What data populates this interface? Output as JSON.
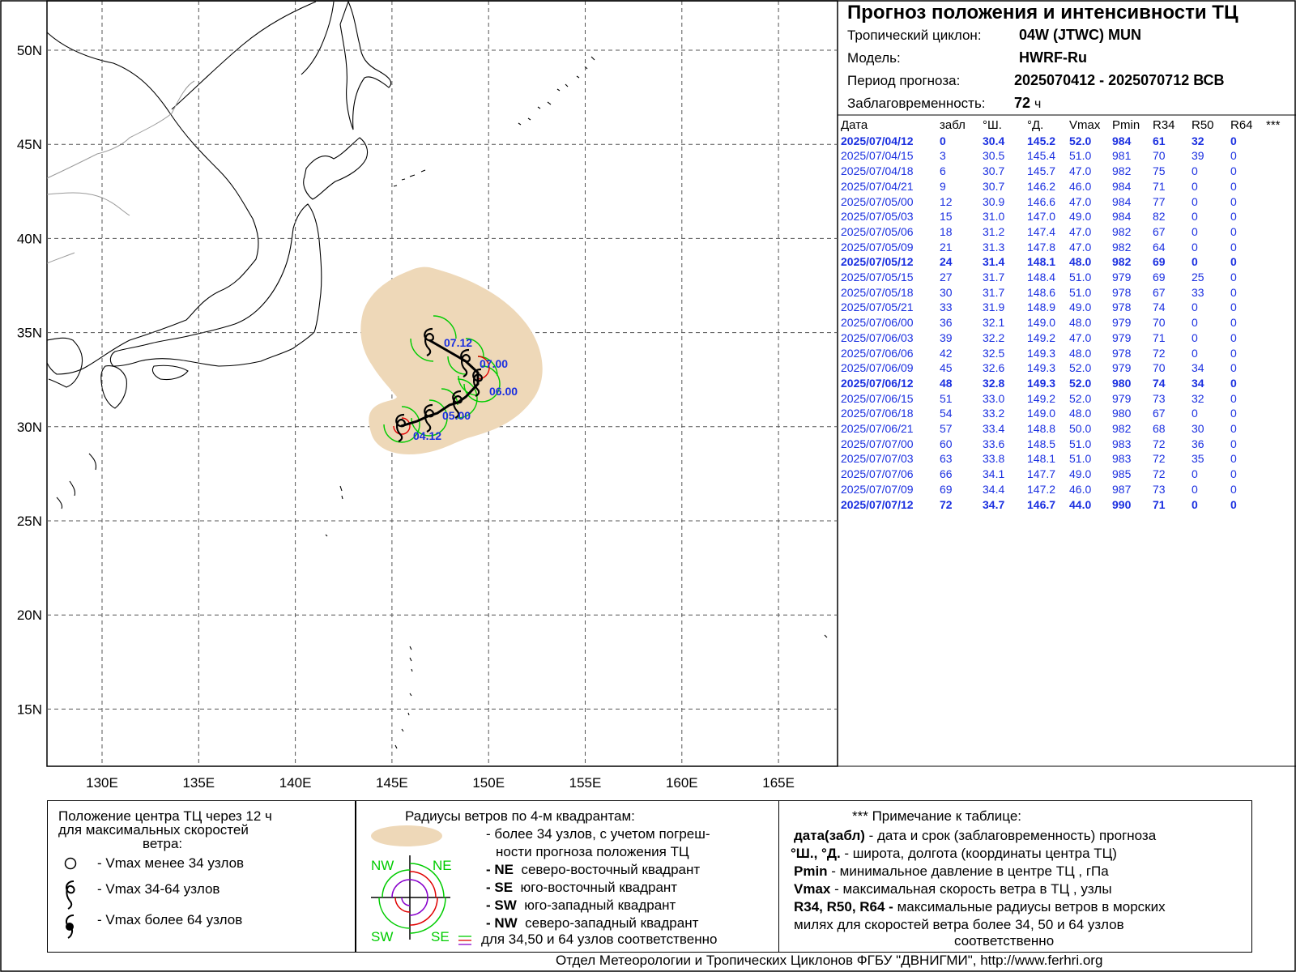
{
  "header": {
    "title": "Прогноз положения и интенсивности ТЦ",
    "cyclone_label": "Тропический циклон:",
    "cyclone_value": "04W (JTWC)  MUN",
    "model_label": "Модель:",
    "model_value": "HWRF-Ru",
    "period_label": "Период прогноза:",
    "period_value": "2025070412 - 2025070712 ВСВ",
    "lead_label": "Заблаговременность:",
    "lead_value": "72",
    "lead_unit": "ч"
  },
  "table": {
    "columns": [
      "Дата",
      "забл",
      "°Ш.",
      "°Д.",
      "Vmax",
      "Pmin",
      "R34",
      "R50",
      "R64",
      "***"
    ],
    "rows": [
      {
        "date": "2025/07/04/12",
        "lead": "0",
        "lat": "30.4",
        "lon": "145.2",
        "vmax": "52.0",
        "pmin": "984",
        "r34": "61",
        "r50": "32",
        "r64": "0",
        "bold": true
      },
      {
        "date": "2025/07/04/15",
        "lead": "3",
        "lat": "30.5",
        "lon": "145.4",
        "vmax": "51.0",
        "pmin": "981",
        "r34": "70",
        "r50": "39",
        "r64": "0",
        "bold": false
      },
      {
        "date": "2025/07/04/18",
        "lead": "6",
        "lat": "30.7",
        "lon": "145.7",
        "vmax": "47.0",
        "pmin": "982",
        "r34": "75",
        "r50": "0",
        "r64": "0",
        "bold": false
      },
      {
        "date": "2025/07/04/21",
        "lead": "9",
        "lat": "30.7",
        "lon": "146.2",
        "vmax": "46.0",
        "pmin": "984",
        "r34": "71",
        "r50": "0",
        "r64": "0",
        "bold": false
      },
      {
        "date": "2025/07/05/00",
        "lead": "12",
        "lat": "30.9",
        "lon": "146.6",
        "vmax": "47.0",
        "pmin": "984",
        "r34": "77",
        "r50": "0",
        "r64": "0",
        "bold": false
      },
      {
        "date": "2025/07/05/03",
        "lead": "15",
        "lat": "31.0",
        "lon": "147.0",
        "vmax": "49.0",
        "pmin": "984",
        "r34": "82",
        "r50": "0",
        "r64": "0",
        "bold": false
      },
      {
        "date": "2025/07/05/06",
        "lead": "18",
        "lat": "31.2",
        "lon": "147.4",
        "vmax": "47.0",
        "pmin": "982",
        "r34": "67",
        "r50": "0",
        "r64": "0",
        "bold": false
      },
      {
        "date": "2025/07/05/09",
        "lead": "21",
        "lat": "31.3",
        "lon": "147.8",
        "vmax": "47.0",
        "pmin": "982",
        "r34": "64",
        "r50": "0",
        "r64": "0",
        "bold": false
      },
      {
        "date": "2025/07/05/12",
        "lead": "24",
        "lat": "31.4",
        "lon": "148.1",
        "vmax": "48.0",
        "pmin": "982",
        "r34": "69",
        "r50": "0",
        "r64": "0",
        "bold": true
      },
      {
        "date": "2025/07/05/15",
        "lead": "27",
        "lat": "31.7",
        "lon": "148.4",
        "vmax": "51.0",
        "pmin": "979",
        "r34": "69",
        "r50": "25",
        "r64": "0",
        "bold": false
      },
      {
        "date": "2025/07/05/18",
        "lead": "30",
        "lat": "31.7",
        "lon": "148.6",
        "vmax": "51.0",
        "pmin": "978",
        "r34": "67",
        "r50": "33",
        "r64": "0",
        "bold": false
      },
      {
        "date": "2025/07/05/21",
        "lead": "33",
        "lat": "31.9",
        "lon": "148.9",
        "vmax": "49.0",
        "pmin": "978",
        "r34": "74",
        "r50": "0",
        "r64": "0",
        "bold": false
      },
      {
        "date": "2025/07/06/00",
        "lead": "36",
        "lat": "32.1",
        "lon": "149.0",
        "vmax": "48.0",
        "pmin": "979",
        "r34": "70",
        "r50": "0",
        "r64": "0",
        "bold": false
      },
      {
        "date": "2025/07/06/03",
        "lead": "39",
        "lat": "32.2",
        "lon": "149.2",
        "vmax": "47.0",
        "pmin": "979",
        "r34": "71",
        "r50": "0",
        "r64": "0",
        "bold": false
      },
      {
        "date": "2025/07/06/06",
        "lead": "42",
        "lat": "32.5",
        "lon": "149.3",
        "vmax": "48.0",
        "pmin": "978",
        "r34": "72",
        "r50": "0",
        "r64": "0",
        "bold": false
      },
      {
        "date": "2025/07/06/09",
        "lead": "45",
        "lat": "32.6",
        "lon": "149.3",
        "vmax": "52.0",
        "pmin": "979",
        "r34": "70",
        "r50": "34",
        "r64": "0",
        "bold": false
      },
      {
        "date": "2025/07/06/12",
        "lead": "48",
        "lat": "32.8",
        "lon": "149.3",
        "vmax": "52.0",
        "pmin": "980",
        "r34": "74",
        "r50": "34",
        "r64": "0",
        "bold": true
      },
      {
        "date": "2025/07/06/15",
        "lead": "51",
        "lat": "33.0",
        "lon": "149.2",
        "vmax": "52.0",
        "pmin": "979",
        "r34": "73",
        "r50": "32",
        "r64": "0",
        "bold": false
      },
      {
        "date": "2025/07/06/18",
        "lead": "54",
        "lat": "33.2",
        "lon": "149.0",
        "vmax": "48.0",
        "pmin": "980",
        "r34": "67",
        "r50": "0",
        "r64": "0",
        "bold": false
      },
      {
        "date": "2025/07/06/21",
        "lead": "57",
        "lat": "33.4",
        "lon": "148.8",
        "vmax": "50.0",
        "pmin": "982",
        "r34": "68",
        "r50": "30",
        "r64": "0",
        "bold": false
      },
      {
        "date": "2025/07/07/00",
        "lead": "60",
        "lat": "33.6",
        "lon": "148.5",
        "vmax": "51.0",
        "pmin": "983",
        "r34": "72",
        "r50": "36",
        "r64": "0",
        "bold": false
      },
      {
        "date": "2025/07/07/03",
        "lead": "63",
        "lat": "33.8",
        "lon": "148.1",
        "vmax": "51.0",
        "pmin": "983",
        "r34": "72",
        "r50": "35",
        "r64": "0",
        "bold": false
      },
      {
        "date": "2025/07/07/06",
        "lead": "66",
        "lat": "34.1",
        "lon": "147.7",
        "vmax": "49.0",
        "pmin": "985",
        "r34": "72",
        "r50": "0",
        "r64": "0",
        "bold": false
      },
      {
        "date": "2025/07/07/09",
        "lead": "69",
        "lat": "34.4",
        "lon": "147.2",
        "vmax": "46.0",
        "pmin": "987",
        "r34": "73",
        "r50": "0",
        "r64": "0",
        "bold": false
      },
      {
        "date": "2025/07/07/12",
        "lead": "72",
        "lat": "34.7",
        "lon": "146.7",
        "vmax": "44.0",
        "pmin": "990",
        "r34": "71",
        "r50": "0",
        "r64": "0",
        "bold": true
      }
    ]
  },
  "map": {
    "lon_ticks": [
      "130E",
      "135E",
      "140E",
      "145E",
      "150E",
      "155E",
      "160E",
      "165E"
    ],
    "lat_ticks": [
      "50N",
      "45N",
      "40N",
      "35N",
      "30N",
      "25N",
      "20N",
      "15N"
    ],
    "track_labels": [
      "07.12",
      "07.00",
      "06.00",
      "05.00",
      "04.12"
    ],
    "colors": {
      "uncertainty": "#eed8b8",
      "r34": "#00cc00",
      "r50": "#e00000",
      "r64": "#8800cc",
      "labels": "#1a2fe0"
    }
  },
  "legend": {
    "center": {
      "title1": "Положение центра ТЦ через 12 ч",
      "title2": "для максимальных скоростей",
      "title3": "ветра:",
      "item1": "- Vmax  менее 34 узлов",
      "item2": "- Vmax  34-64 узлов",
      "item3": "- Vmax  более 64 узлов"
    },
    "radii": {
      "title": "Радиусы ветров по 4-м квадрантам:",
      "l1": "- более 34 узлов, с учетом погреш-",
      "l2": "ности прогноза положения ТЦ",
      "ne_key": "- NE",
      "ne_text": "северо-восточный квадрант",
      "se_key": "- SE",
      "se_text": "юго-восточный квадрант",
      "sw_key": "- SW",
      "sw_text": "юго-западный квадрант",
      "nw_key": "- NW",
      "nw_text": "северо-западный квадрант",
      "last": "для 34,50 и 64 узлов соответственно",
      "q_nw": "NW",
      "q_ne": "NE",
      "q_sw": "SW",
      "q_se": "SE"
    },
    "note": {
      "title": "*** Примечание к таблице:",
      "k1": "дата(забл)",
      "t1": " - дата и срок (заблаговременность) прогноза",
      "k2": "°Ш., °Д.",
      "t2": " - широта, долгота   (координаты центра ТЦ)",
      "k3": "Pmin",
      "t3": "  - минимальное давление в центре ТЦ , гПа",
      "k4": "Vmax",
      "t4": "   -  максимальная скорость ветра в ТЦ , узлы",
      "k5": "R34, R50, R64 -",
      "t5": " максимальные радиусы ветров в морских",
      "t6": "милях для скоростей ветра более 34, 50 и 64 узлов",
      "t7": "соответственно"
    }
  },
  "footer": "Отдел Метеорологии и Тропических Циклонов ФГБУ \"ДВНИГМИ\",  http://www.ferhri.org"
}
